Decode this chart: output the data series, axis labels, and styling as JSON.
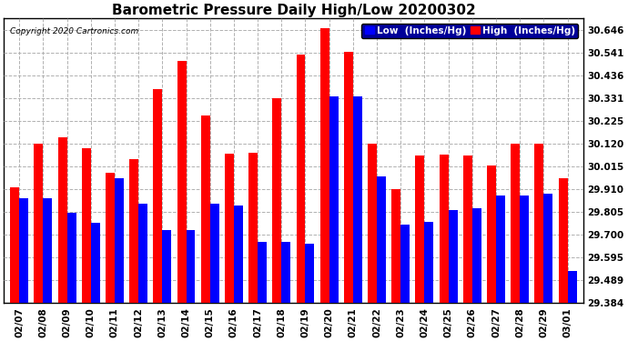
{
  "title": "Barometric Pressure Daily High/Low 20200302",
  "copyright": "Copyright 2020 Cartronics.com",
  "legend_low": "Low  (Inches/Hg)",
  "legend_high": "High  (Inches/Hg)",
  "dates": [
    "02/07",
    "02/08",
    "02/09",
    "02/10",
    "02/11",
    "02/12",
    "02/13",
    "02/14",
    "02/15",
    "02/16",
    "02/17",
    "02/18",
    "02/19",
    "02/20",
    "02/21",
    "02/22",
    "02/23",
    "02/24",
    "02/25",
    "02/26",
    "02/27",
    "02/28",
    "02/29",
    "03/01"
  ],
  "low": [
    29.868,
    29.868,
    29.8,
    29.755,
    29.96,
    29.845,
    29.72,
    29.72,
    29.845,
    29.835,
    29.665,
    29.665,
    29.66,
    30.34,
    30.34,
    29.97,
    29.745,
    29.76,
    29.815,
    29.82,
    29.88,
    29.88,
    29.89,
    29.53
  ],
  "high": [
    29.92,
    30.12,
    30.15,
    30.1,
    29.985,
    30.05,
    30.375,
    30.505,
    30.25,
    30.075,
    30.08,
    30.33,
    30.535,
    30.655,
    30.545,
    30.12,
    29.91,
    30.065,
    30.07,
    30.065,
    30.02,
    30.12,
    30.12,
    29.96
  ],
  "ylim_min": 29.384,
  "ylim_max": 30.7,
  "yticks": [
    29.384,
    29.489,
    29.595,
    29.7,
    29.805,
    29.91,
    30.015,
    30.12,
    30.225,
    30.331,
    30.436,
    30.541,
    30.646
  ],
  "bar_width": 0.38,
  "low_color": "#0000ff",
  "high_color": "#ff0000",
  "background_color": "#ffffff",
  "grid_color": "#b0b0b0",
  "title_fontsize": 11,
  "tick_fontsize": 7.5,
  "legend_fontsize": 7.5
}
